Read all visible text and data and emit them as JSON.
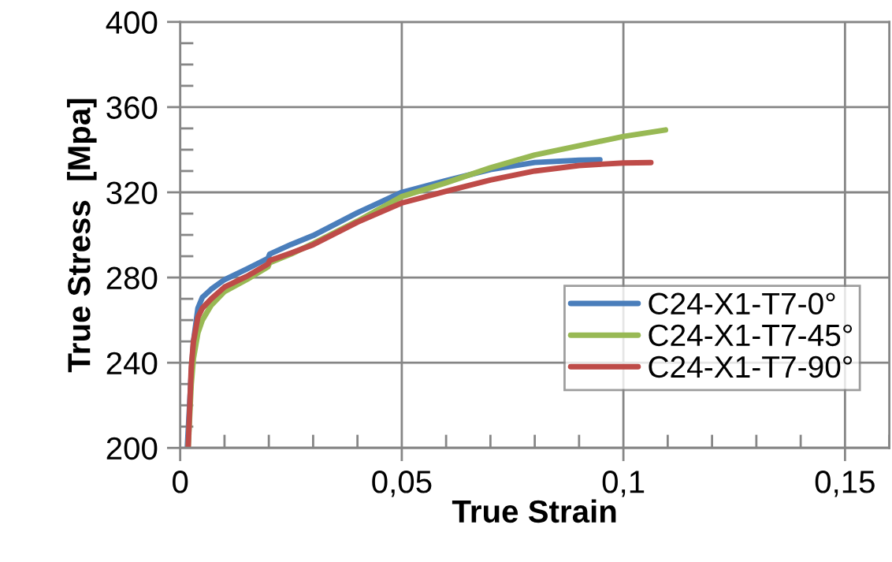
{
  "chart_data": {
    "type": "line",
    "xlabel": "True Strain",
    "ylabel": "True Stress  [Mpa]",
    "xlim": [
      0,
      0.16
    ],
    "ylim": [
      200,
      400
    ],
    "xticks": [
      0,
      {
        "value": 0.05,
        "label": "0,05"
      },
      {
        "value": 0.1,
        "label": "0,1"
      },
      {
        "value": 0.15,
        "label": "0,15"
      }
    ],
    "yticks": [
      200,
      240,
      280,
      320,
      360,
      400
    ],
    "grid": true,
    "legend": "bottom right",
    "marker": "none",
    "line_style": "solid",
    "series": [
      {
        "name": "C24-X1-T7-0°",
        "color": "#4a7ebb",
        "x": [
          0.0016,
          0.0025,
          0.003,
          0.004,
          0.005,
          0.007,
          0.01,
          0.015,
          0.0198,
          0.0202,
          0.025,
          0.03,
          0.04,
          0.05,
          0.06,
          0.07,
          0.08,
          0.09,
          0.0947
        ],
        "values": [
          200,
          235,
          250,
          265.6,
          270.7,
          274.5,
          279,
          284,
          289,
          291,
          295.5,
          299.7,
          310.4,
          320,
          325.5,
          330.7,
          334,
          335.1,
          335.3
        ]
      },
      {
        "name": "C24-X1-T7-45°",
        "color": "#98b954",
        "x": [
          0.0018,
          0.0025,
          0.003,
          0.004,
          0.005,
          0.007,
          0.01,
          0.015,
          0.0198,
          0.0202,
          0.025,
          0.03,
          0.04,
          0.05,
          0.06,
          0.07,
          0.08,
          0.09,
          0.1,
          0.1095
        ],
        "values": [
          200,
          230,
          242,
          254,
          260,
          267,
          273.4,
          279,
          285,
          287,
          291,
          296,
          306.5,
          318,
          324.5,
          331.5,
          337.5,
          341.9,
          346.2,
          349.3
        ]
      },
      {
        "name": "C24-X1-T7-90°",
        "color": "#be4b48",
        "x": [
          0.0018,
          0.0025,
          0.003,
          0.004,
          0.005,
          0.007,
          0.01,
          0.015,
          0.0198,
          0.0202,
          0.025,
          0.03,
          0.04,
          0.05,
          0.06,
          0.07,
          0.08,
          0.09,
          0.1,
          0.1062
        ],
        "values": [
          200,
          238,
          250,
          261.4,
          265.6,
          270,
          275.5,
          280.5,
          286.3,
          288,
          291.5,
          295.4,
          306,
          315,
          320.5,
          325.8,
          330,
          332.6,
          333.8,
          334
        ]
      }
    ]
  }
}
